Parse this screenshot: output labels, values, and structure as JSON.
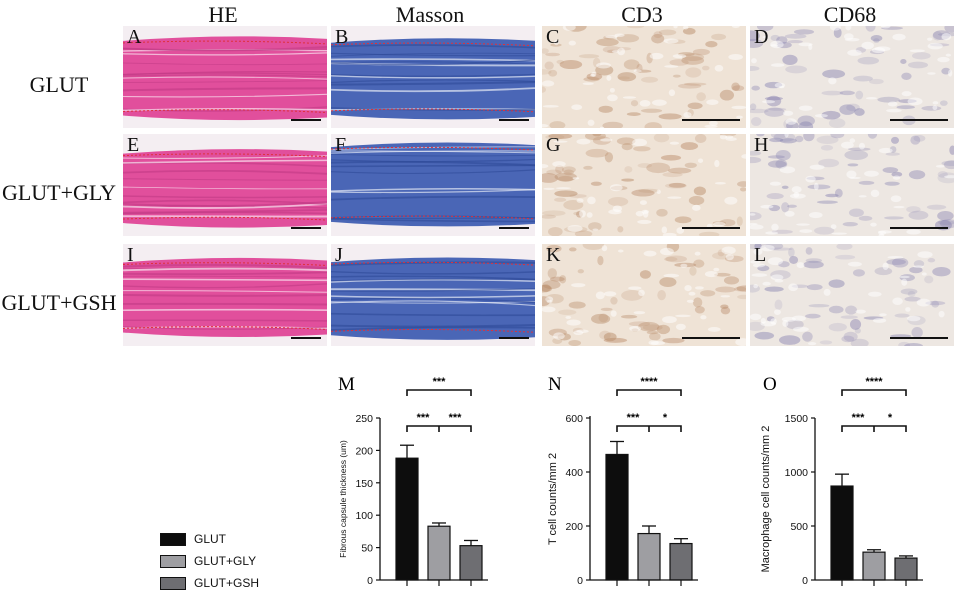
{
  "columns": [
    "HE",
    "Masson",
    "CD3",
    "CD68"
  ],
  "rows": [
    "GLUT",
    "GLUT+GLY",
    "GLUT+GSH"
  ],
  "panel_letters": [
    "A",
    "B",
    "C",
    "D",
    "E",
    "F",
    "G",
    "H",
    "I",
    "J",
    "K",
    "L"
  ],
  "stain_colors": {
    "HE": "#e14f9c",
    "Masson": "#4a66b6",
    "CD3": "#f1e6dc",
    "CD68": "#eee8e4"
  },
  "series_colors": [
    "#0d0d0d",
    "#9e9ea2",
    "#6e6e72"
  ],
  "legend": [
    "GLUT",
    "GLUT+GLY",
    "GLUT+GSH"
  ],
  "chart_data": [
    {
      "type": "bar",
      "panel": "M",
      "categories": [
        "GLUT",
        "GLUT+GLY",
        "GLUT+GSH"
      ],
      "values": [
        188,
        83,
        53
      ],
      "errors": [
        20,
        5,
        8
      ],
      "ylabel": "Fibrous capsule thickness (um)",
      "ylim": [
        0,
        250
      ],
      "yticks": [
        "0",
        "50",
        "100",
        "150",
        "200",
        "250"
      ],
      "significance": {
        "top": "***",
        "left": "***",
        "right": "***"
      }
    },
    {
      "type": "bar",
      "panel": "N",
      "categories": [
        "GLUT",
        "GLUT+GLY",
        "GLUT+GSH"
      ],
      "values": [
        465,
        172,
        135
      ],
      "errors": [
        48,
        28,
        18
      ],
      "ylabel": "T cell counts/mm 2",
      "ylim": [
        0,
        600
      ],
      "yticks": [
        "0",
        "200",
        "400",
        "600"
      ],
      "significance": {
        "top": "****",
        "left": "***",
        "right": "*"
      }
    },
    {
      "type": "bar",
      "panel": "O",
      "categories": [
        "GLUT",
        "GLUT+GLY",
        "GLUT+GSH"
      ],
      "values": [
        870,
        258,
        203
      ],
      "errors": [
        110,
        22,
        20
      ],
      "ylabel": "Macrophage cell counts/mm 2",
      "ylim": [
        0,
        1500
      ],
      "yticks": [
        "0",
        "500",
        "1000",
        "1500"
      ],
      "significance": {
        "top": "****",
        "left": "***",
        "right": "*"
      }
    }
  ]
}
